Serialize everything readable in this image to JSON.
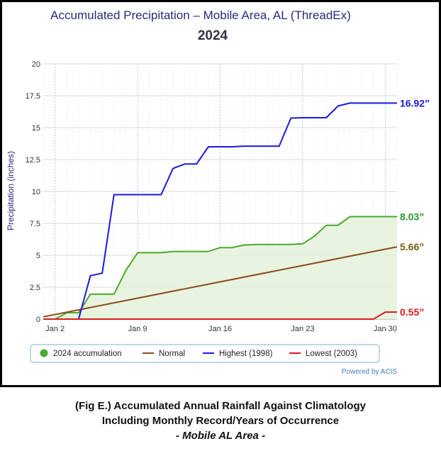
{
  "chart_data": {
    "type": "line",
    "title": "Accumulated Precipitation – Mobile Area, AL (ThreadEx)",
    "subtitle": "2024",
    "xlabel": "",
    "ylabel": "Precipitation (inches)",
    "ylim": [
      0,
      20
    ],
    "yticks": [
      "0",
      "2.5",
      "5",
      "7.5",
      "10",
      "12.5",
      "15",
      "17.5",
      "20"
    ],
    "xlim": [
      1,
      31
    ],
    "xticks": [
      {
        "day": 2,
        "label": "Jan 2"
      },
      {
        "day": 9,
        "label": "Jan 9"
      },
      {
        "day": 16,
        "label": "Jan 16"
      },
      {
        "day": 23,
        "label": "Jan 23"
      },
      {
        "day": 30,
        "label": "Jan 30"
      }
    ],
    "grid": true,
    "legend_position": "bottom",
    "series": [
      {
        "name": "2024 accumulation",
        "color": "#4ca82c",
        "fill": "#e6f3dd",
        "marker": "circle",
        "points": [
          [
            1,
            0
          ],
          [
            2,
            0
          ],
          [
            3,
            0.5
          ],
          [
            4,
            0.5
          ],
          [
            5,
            1.95
          ],
          [
            6,
            1.95
          ],
          [
            7,
            1.95
          ],
          [
            8,
            3.8
          ],
          [
            9,
            5.2
          ],
          [
            10,
            5.2
          ],
          [
            11,
            5.2
          ],
          [
            12,
            5.3
          ],
          [
            13,
            5.3
          ],
          [
            14,
            5.3
          ],
          [
            15,
            5.3
          ],
          [
            16,
            5.6
          ],
          [
            17,
            5.6
          ],
          [
            18,
            5.8
          ],
          [
            19,
            5.85
          ],
          [
            20,
            5.85
          ],
          [
            21,
            5.85
          ],
          [
            22,
            5.85
          ],
          [
            23,
            5.9
          ],
          [
            24,
            6.5
          ],
          [
            25,
            7.35
          ],
          [
            26,
            7.35
          ],
          [
            27,
            8.03
          ],
          [
            28,
            8.03
          ],
          [
            29,
            8.03
          ],
          [
            30,
            8.03
          ],
          [
            31,
            8.03
          ]
        ]
      },
      {
        "name": "Normal",
        "color": "#8a4a1c",
        "points": [
          [
            1,
            0.18
          ],
          [
            31,
            5.66
          ]
        ]
      },
      {
        "name": "Highest (1998)",
        "color": "#1a1adc",
        "points": [
          [
            1,
            0
          ],
          [
            3,
            0
          ],
          [
            4,
            0
          ],
          [
            5,
            3.4
          ],
          [
            6,
            3.6
          ],
          [
            7,
            9.75
          ],
          [
            8,
            9.75
          ],
          [
            9,
            9.75
          ],
          [
            10,
            9.75
          ],
          [
            11,
            9.75
          ],
          [
            12,
            11.8
          ],
          [
            13,
            12.15
          ],
          [
            14,
            12.15
          ],
          [
            15,
            13.5
          ],
          [
            16,
            13.5
          ],
          [
            17,
            13.5
          ],
          [
            18,
            13.55
          ],
          [
            19,
            13.55
          ],
          [
            20,
            13.55
          ],
          [
            21,
            13.55
          ],
          [
            22,
            15.75
          ],
          [
            23,
            15.78
          ],
          [
            24,
            15.78
          ],
          [
            25,
            15.78
          ],
          [
            26,
            16.7
          ],
          [
            27,
            16.92
          ],
          [
            28,
            16.92
          ],
          [
            29,
            16.92
          ],
          [
            30,
            16.92
          ],
          [
            31,
            16.92
          ]
        ]
      },
      {
        "name": "Lowest (2003)",
        "color": "#d81c1c",
        "points": [
          [
            1,
            0
          ],
          [
            29,
            0
          ],
          [
            30,
            0.55
          ],
          [
            31,
            0.55
          ]
        ]
      }
    ],
    "annotations": [
      {
        "text": "16.92”",
        "value": 16.92,
        "color": "#1a1adc"
      },
      {
        "text": "8.03”",
        "value": 8.03,
        "color": "#2a9a2a"
      },
      {
        "text": "5.66”",
        "value": 5.66,
        "color": "#7a5a10"
      },
      {
        "text": "0.55”",
        "value": 0.55,
        "color": "#d81c1c"
      }
    ],
    "credit": "Powered by ACIS"
  },
  "caption": {
    "line1": "(Fig E.) Accumulated Annual Rainfall Against  Climatology",
    "line2": "Including Monthly Record/Years of Occurrence",
    "line3": "- Mobile AL Area -"
  }
}
